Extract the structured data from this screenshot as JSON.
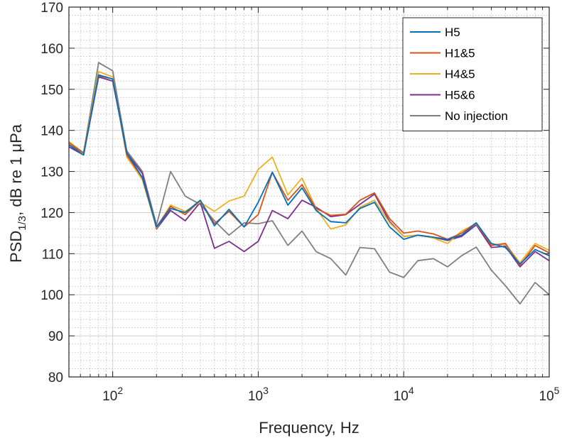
{
  "chart_data": {
    "type": "line",
    "xlabel": "Frequency, Hz",
    "ylabel": "PSD",
    "ylabel_sub": "1/3",
    "ylabel_tail": ", dB re 1 μPa",
    "x_scale": "log",
    "xlim": [
      50,
      100000
    ],
    "ylim": [
      80,
      170
    ],
    "grid": true,
    "minor_grid": true,
    "legend_position": "top-right",
    "x_ticks": [
      {
        "value": 100,
        "base": "10",
        "exp": "2"
      },
      {
        "value": 1000,
        "base": "10",
        "exp": "3"
      },
      {
        "value": 10000,
        "base": "10",
        "exp": "4"
      },
      {
        "value": 100000,
        "base": "10",
        "exp": "5"
      }
    ],
    "y_ticks": [
      {
        "value": 80,
        "label": "80"
      },
      {
        "value": 90,
        "label": "90"
      },
      {
        "value": 100,
        "label": "100"
      },
      {
        "value": 110,
        "label": "110"
      },
      {
        "value": 120,
        "label": "120"
      },
      {
        "value": 130,
        "label": "130"
      },
      {
        "value": 140,
        "label": "140"
      },
      {
        "value": 150,
        "label": "150"
      },
      {
        "value": 160,
        "label": "160"
      },
      {
        "value": 170,
        "label": "170"
      }
    ],
    "x": [
      50,
      63,
      80,
      100,
      125,
      160,
      200,
      250,
      315,
      400,
      500,
      630,
      800,
      1000,
      1250,
      1600,
      2000,
      2500,
      3150,
      4000,
      5000,
      6300,
      8000,
      10000,
      12500,
      16000,
      20000,
      25000,
      31500,
      40000,
      50000,
      63000,
      80000,
      100000
    ],
    "series": [
      {
        "name": "H5",
        "color": "#0072BD",
        "values": [
          136.5,
          134.0,
          153.5,
          152.5,
          134.5,
          128.5,
          116.5,
          121.0,
          120.0,
          123.0,
          116.8,
          120.8,
          116.5,
          122.5,
          129.8,
          121.8,
          126.0,
          120.5,
          117.8,
          117.5,
          121.0,
          122.5,
          116.5,
          113.5,
          114.5,
          114.0,
          113.5,
          114.5,
          117.5,
          112.5,
          111.5,
          107.5,
          111.0,
          109.5
        ]
      },
      {
        "name": "H1&5",
        "color": "#D95319",
        "values": [
          137.0,
          134.5,
          153.3,
          152.5,
          134.0,
          128.5,
          116.5,
          121.5,
          119.5,
          123.0,
          117.3,
          120.3,
          116.5,
          119.5,
          129.8,
          123.0,
          126.8,
          121.0,
          119.3,
          119.6,
          123.0,
          124.8,
          118.5,
          115.0,
          115.5,
          114.8,
          113.5,
          115.0,
          117.5,
          112.0,
          112.5,
          107.2,
          112.0,
          110.2
        ]
      },
      {
        "name": "H4&5",
        "color": "#EDB120",
        "values": [
          137.3,
          134.5,
          154.3,
          153.0,
          133.5,
          128.0,
          116.2,
          121.8,
          120.3,
          122.5,
          120.3,
          122.8,
          124.0,
          130.5,
          133.5,
          124.3,
          128.4,
          121.0,
          116.0,
          117.0,
          121.3,
          123.0,
          117.5,
          114.2,
          114.5,
          113.8,
          112.5,
          115.5,
          117.3,
          112.3,
          112.2,
          107.8,
          112.5,
          110.8
        ]
      },
      {
        "name": "H5&6",
        "color": "#7E2F8E",
        "values": [
          136.0,
          134.0,
          153.0,
          152.0,
          134.5,
          129.5,
          116.0,
          120.5,
          118.0,
          122.5,
          111.3,
          113.0,
          110.5,
          113.0,
          120.5,
          118.5,
          123.0,
          121.3,
          119.0,
          119.5,
          122.0,
          124.5,
          117.8,
          114.2,
          114.5,
          114.0,
          113.2,
          114.2,
          117.0,
          111.5,
          111.8,
          106.8,
          110.5,
          108.3
        ]
      },
      {
        "name": "No injection",
        "color": "#808080",
        "values": [
          136.5,
          134.5,
          156.5,
          154.5,
          135.0,
          130.0,
          117.0,
          130.0,
          124.0,
          122.0,
          118.0,
          114.5,
          117.5,
          117.3,
          118.0,
          112.0,
          115.5,
          110.5,
          108.8,
          104.8,
          111.5,
          111.2,
          105.5,
          104.2,
          108.3,
          108.8,
          106.8,
          109.5,
          111.6,
          106.0,
          102.2,
          97.8,
          103.0,
          100.0
        ]
      }
    ]
  }
}
